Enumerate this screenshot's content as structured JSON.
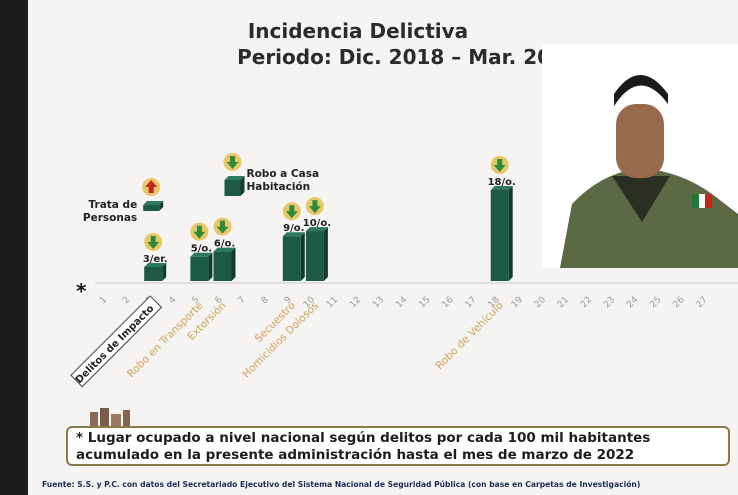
{
  "slide": {
    "title_line1": "Incidencia Delictiva",
    "title_line2": "Periodo: Dic. 2018 – Mar. 2022",
    "note_line1": "* Lugar ocupado a nivel nacional según delitos por cada 100 mil habitantes",
    "note_line2": "acumulado en la presente administración hasta el mes de marzo de 2022",
    "source": "Fuente: S.S. y P.C. con datos del Secretariado Ejecutivo del Sistema Nacional de Seguridad Pública (con base en Carpetas de Investigación)"
  },
  "colors": {
    "bar_green": "#1d5a45",
    "bar_dark": "#123b2d",
    "arrow_down_green": "#2e8b3a",
    "arrow_up_red": "#c0281e",
    "arrow_circle": "#e8c866"
  },
  "icons": [
    "down-arrow-icon",
    "up-arrow-icon",
    "asterisk-icon",
    "buildings-logo"
  ],
  "chart_data": {
    "type": "bar",
    "xlabel": "*",
    "x_ticks": [
      "1",
      "2",
      "3",
      "4",
      "5",
      "6",
      "7",
      "8",
      "9",
      "10",
      "11",
      "12",
      "13",
      "14",
      "15",
      "16",
      "17",
      "18",
      "19",
      "20",
      "21",
      "22",
      "23",
      "24",
      "25",
      "26",
      "27"
    ],
    "category_labels": [
      {
        "label": "Delitos de Impacto",
        "at": 3,
        "boxed": true
      },
      {
        "label": "Robo en Transporte",
        "at": 5
      },
      {
        "label": "Extorsión",
        "at": 6
      },
      {
        "label": "Secuestro",
        "at": 9
      },
      {
        "label": "Homicidios Dolosos",
        "at": 10
      },
      {
        "label": "Robo de Vehículo",
        "at": 18
      }
    ],
    "series": [
      {
        "rank": 3,
        "label": "3/er.",
        "trend": "down"
      },
      {
        "rank": 5,
        "label": "5/o.",
        "trend": "down"
      },
      {
        "rank": 6,
        "label": "6/o.",
        "trend": "down"
      },
      {
        "rank": 9,
        "label": "9/o.",
        "trend": "down"
      },
      {
        "rank": 10,
        "label": "10/o.",
        "trend": "down"
      },
      {
        "rank": 18,
        "label": "18/o.",
        "trend": "down"
      }
    ],
    "floating_items": [
      {
        "label": "Trata de Personas",
        "trend": "up",
        "near_rank": 3
      },
      {
        "label": "Robo a Casa Habitación",
        "trend": "down",
        "near_rank": 6
      }
    ]
  }
}
